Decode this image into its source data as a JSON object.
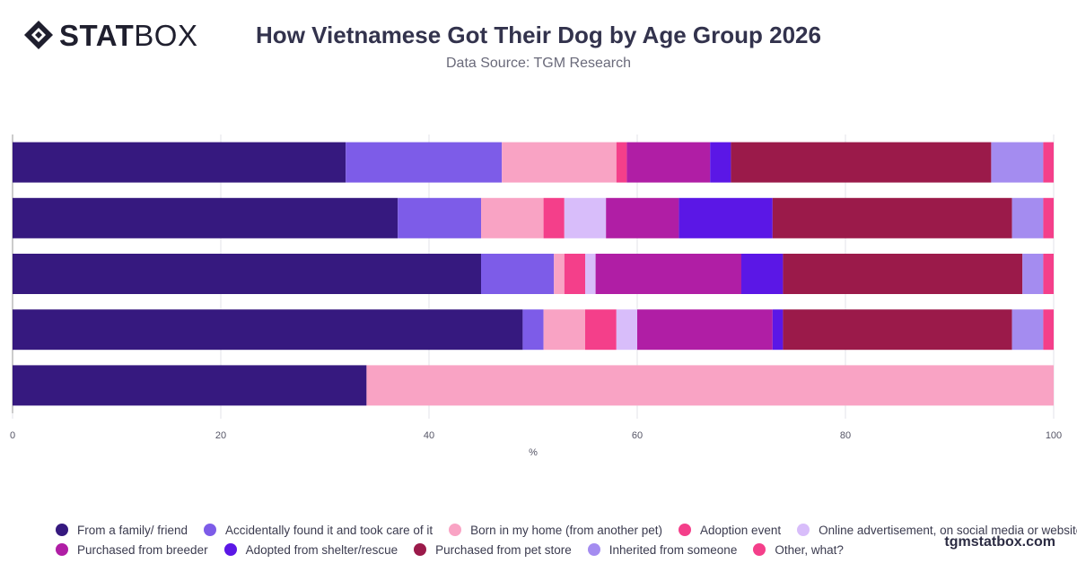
{
  "header": {
    "logo_bold": "STAT",
    "logo_light": "BOX",
    "title": "How Vietnamese Got Their Dog by Age Group 2026",
    "subtitle": "Data Source: TGM Research"
  },
  "footer": {
    "brand": "tgmstatbox.com"
  },
  "chart_data": {
    "type": "bar",
    "orientation": "horizontal",
    "stacked": true,
    "xlabel": "%",
    "xlim": [
      0,
      100
    ],
    "xticks": [
      0,
      20,
      40,
      60,
      80,
      100
    ],
    "grid": true,
    "legend_position": "bottom",
    "categories": [
      "",
      "",
      "",
      "",
      ""
    ],
    "series": [
      {
        "name": "From a family/ friend",
        "color": "#36197f",
        "values": [
          32,
          37,
          45,
          49,
          34
        ]
      },
      {
        "name": "Accidentally found it and took care of it",
        "color": "#7d5ce8",
        "values": [
          15,
          8,
          7,
          2,
          0
        ]
      },
      {
        "name": "Born in my home (from another pet)",
        "color": "#f9a3c4",
        "values": [
          11,
          6,
          1,
          4,
          66
        ]
      },
      {
        "name": "Adoption event",
        "color": "#f43f8a",
        "values": [
          1,
          2,
          2,
          3,
          0
        ]
      },
      {
        "name": "Online advertisement, on social media or website",
        "color": "#d8bdfa",
        "values": [
          0,
          4,
          1,
          2,
          0
        ]
      },
      {
        "name": "Purchased from breeder",
        "color": "#b01ea5",
        "values": [
          8,
          7,
          14,
          13,
          0
        ]
      },
      {
        "name": "Adopted from shelter/rescue",
        "color": "#5b17e6",
        "values": [
          2,
          9,
          4,
          1,
          0
        ]
      },
      {
        "name": "Purchased from pet store",
        "color": "#9b1a4a",
        "values": [
          25,
          23,
          23,
          22,
          0
        ]
      },
      {
        "name": "Inherited from someone",
        "color": "#a48cf0",
        "values": [
          5,
          3,
          2,
          3,
          0
        ]
      },
      {
        "name": "Other, what?",
        "color": "#f43f8a",
        "values": [
          1,
          1,
          1,
          1,
          0
        ]
      }
    ]
  }
}
